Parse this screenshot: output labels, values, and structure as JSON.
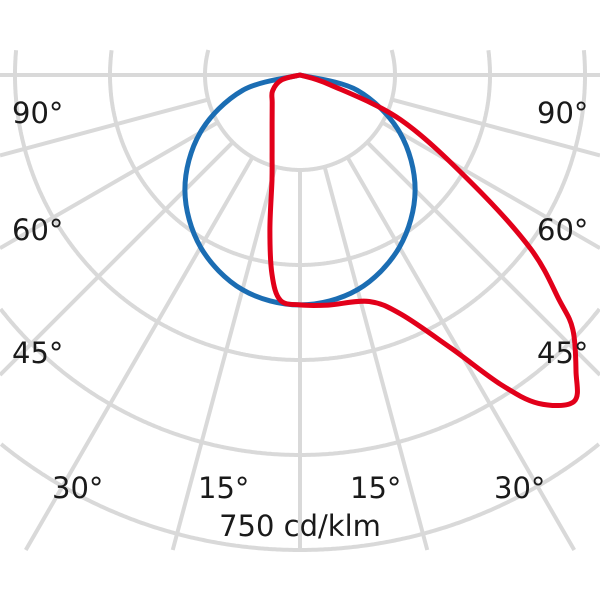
{
  "chart_data": {
    "type": "polar",
    "unit_label": "750 cd/klm",
    "radial_max": 750,
    "radial_ticks": [
      150,
      300,
      450,
      600,
      750
    ],
    "angle_grid": [
      0,
      15,
      30,
      45,
      60,
      75,
      90
    ],
    "angle_labels": {
      "left": [
        "90°",
        "60°",
        "45°"
      ],
      "right": [
        "90°",
        "60°",
        "45°"
      ],
      "bottom": [
        "30°",
        "15°",
        "15°",
        "30°"
      ]
    },
    "grid": true,
    "grid_color": "#d9d9d9",
    "series": [
      {
        "color": "#1b6db3",
        "points": [
          {
            "angle": -90,
            "value": 0
          },
          {
            "angle": -75,
            "value": 94
          },
          {
            "angle": -60,
            "value": 182
          },
          {
            "angle": -45,
            "value": 257
          },
          {
            "angle": -30,
            "value": 314
          },
          {
            "angle": -15,
            "value": 351
          },
          {
            "angle": 0,
            "value": 363
          },
          {
            "angle": 15,
            "value": 351
          },
          {
            "angle": 30,
            "value": 314
          },
          {
            "angle": 45,
            "value": 257
          },
          {
            "angle": 60,
            "value": 182
          },
          {
            "angle": 75,
            "value": 94
          },
          {
            "angle": 90,
            "value": 0
          }
        ]
      },
      {
        "color": "#e2001a",
        "points": [
          {
            "angle": -90,
            "value": 0
          },
          {
            "angle": -75,
            "value": 30
          },
          {
            "angle": -60,
            "value": 50
          },
          {
            "angle": -45,
            "value": 62
          },
          {
            "angle": -30,
            "value": 88
          },
          {
            "angle": -20,
            "value": 129
          },
          {
            "angle": -15,
            "value": 171
          },
          {
            "angle": -11,
            "value": 249
          },
          {
            "angle": -8,
            "value": 318
          },
          {
            "angle": -5,
            "value": 357
          },
          {
            "angle": 0,
            "value": 363
          },
          {
            "angle": 7,
            "value": 366
          },
          {
            "angle": 17,
            "value": 374
          },
          {
            "angle": 23,
            "value": 411
          },
          {
            "angle": 29,
            "value": 494
          },
          {
            "angle": 33,
            "value": 583
          },
          {
            "angle": 36,
            "value": 641
          },
          {
            "angle": 40,
            "value": 673
          },
          {
            "angle": 43,
            "value": 639
          },
          {
            "angle": 47,
            "value": 589
          },
          {
            "angle": 49,
            "value": 543
          },
          {
            "angle": 53,
            "value": 456
          },
          {
            "angle": 58,
            "value": 316
          },
          {
            "angle": 66,
            "value": 174
          },
          {
            "angle": 72,
            "value": 50
          },
          {
            "angle": 90,
            "value": 0
          }
        ]
      }
    ]
  }
}
